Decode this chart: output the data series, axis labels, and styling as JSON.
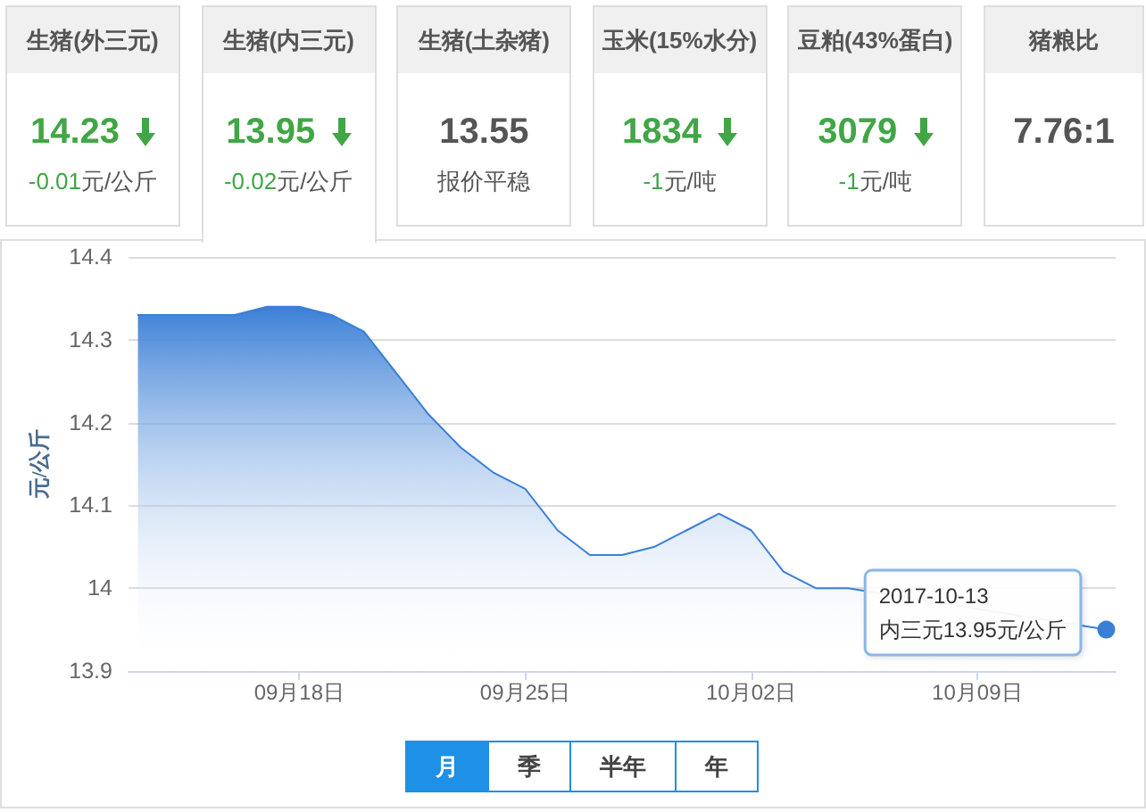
{
  "chart_data": [
    {
      "type": "other",
      "categories": [
        "生猪(外三元)",
        "生猪(内三元)",
        "生猪(土杂猪)",
        "玉米(15%水分)",
        "豆粕(43%蛋白)",
        "猪粮比"
      ],
      "values": [
        -0.01,
        -0.02,
        null,
        -1,
        -1,
        null
      ],
      "data_labels": true,
      "annotations": [
        "14.23",
        "13.95",
        "13.55",
        "1834",
        "3079",
        "7.76:1",
        "元/公斤",
        "元/公斤",
        "报价平稳",
        "元/吨",
        "元/吨"
      ]
    },
    {
      "type": "area",
      "color": "#3a7fd6",
      "ylabel": "元/公斤",
      "x": [
        "2017-09-13",
        "2017-09-14",
        "2017-09-15",
        "2017-09-16",
        "2017-09-17",
        "2017-09-18",
        "2017-09-19",
        "2017-09-20",
        "2017-09-21",
        "2017-09-22",
        "2017-09-23",
        "2017-09-24",
        "2017-09-25",
        "2017-09-26",
        "2017-09-27",
        "2017-09-28",
        "2017-09-29",
        "2017-09-30",
        "2017-10-01",
        "2017-10-02",
        "2017-10-03",
        "2017-10-04",
        "2017-10-05",
        "2017-10-06",
        "2017-10-07",
        "2017-10-08",
        "2017-10-09",
        "2017-10-10",
        "2017-10-11",
        "2017-10-12",
        "2017-10-13"
      ],
      "values": [
        14.33,
        14.33,
        14.33,
        14.33,
        14.34,
        14.34,
        14.33,
        14.31,
        14.26,
        14.21,
        14.17,
        14.14,
        14.12,
        14.07,
        14.04,
        14.04,
        14.05,
        14.07,
        14.09,
        14.07,
        14.02,
        14.0,
        14.0,
        null,
        null,
        null,
        null,
        null,
        null,
        null,
        13.95
      ],
      "xlim": [
        "2017-09-12T17:00",
        "2017-10-13T07:00"
      ],
      "xticks": [
        {
          "value": "2017-09-18",
          "label": "09月18日"
        },
        {
          "value": "2017-09-25",
          "label": "09月25日"
        },
        {
          "value": "2017-10-02",
          "label": "10月02日"
        },
        {
          "value": "2017-10-09",
          "label": "10月09日"
        }
      ],
      "ylim": [
        13.9,
        14.4
      ],
      "yticks": [
        13.9,
        14,
        14.1,
        14.2,
        14.3,
        14.4
      ],
      "grid": "y",
      "marker": "none",
      "annotations": [
        {
          "text": "2017-10-13\n内三元13.95元/公斤",
          "x": "2017-10-13",
          "y": 13.95
        },
        "月",
        "季",
        "半年",
        "年"
      ]
    }
  ]
}
